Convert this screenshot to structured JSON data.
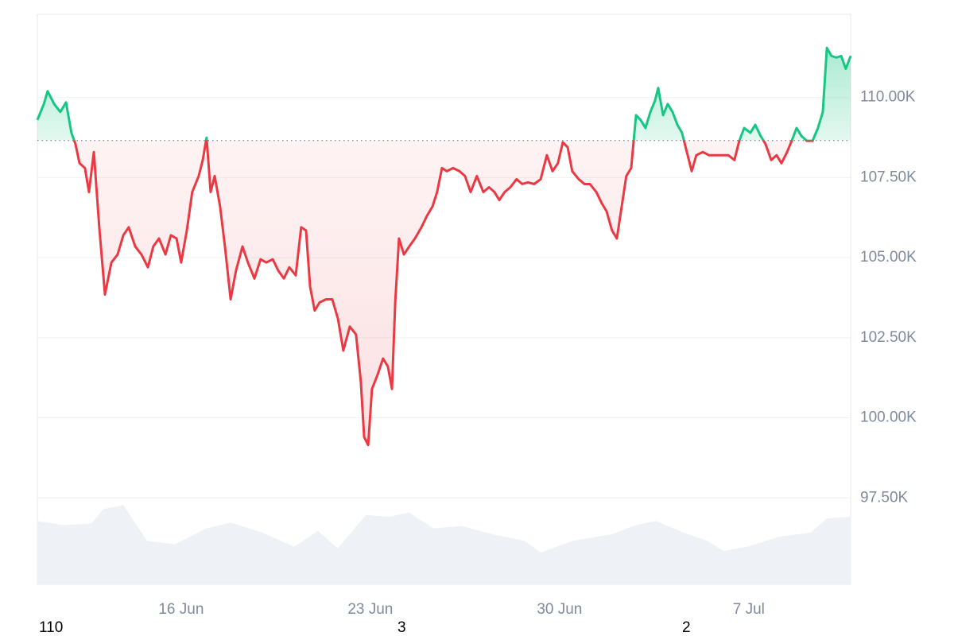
{
  "chart_data": {
    "type": "baseline",
    "x": [
      10.68,
      10.92,
      11.06,
      11.3,
      11.53,
      11.74,
      11.94,
      12.09,
      12.24,
      12.44,
      12.59,
      12.77,
      12.97,
      13.18,
      13.42,
      13.65,
      13.86,
      14.06,
      14.3,
      14.53,
      14.77,
      14.97,
      15.18,
      15.42,
      15.62,
      15.83,
      16.0,
      16.21,
      16.41,
      16.65,
      16.8,
      16.94,
      17.09,
      17.24,
      17.44,
      17.62,
      17.83,
      18.03,
      18.27,
      18.47,
      18.71,
      18.94,
      19.15,
      19.39,
      19.59,
      19.8,
      20.0,
      20.24,
      20.44,
      20.62,
      20.77,
      20.94,
      21.12,
      21.36,
      21.59,
      21.8,
      22.0,
      22.24,
      22.47,
      22.65,
      22.77,
      22.92,
      23.06,
      23.27,
      23.47,
      23.65,
      23.8,
      23.92,
      24.06,
      24.24,
      24.44,
      24.65,
      24.89,
      25.09,
      25.3,
      25.47,
      25.65,
      25.83,
      26.06,
      26.3,
      26.5,
      26.71,
      26.94,
      27.18,
      27.39,
      27.59,
      27.77,
      27.97,
      28.18,
      28.41,
      28.62,
      28.83,
      29.06,
      29.3,
      29.53,
      29.74,
      29.94,
      30.12,
      30.3,
      30.47,
      30.71,
      30.92,
      31.12,
      31.36,
      31.56,
      31.74,
      31.94,
      32.12,
      32.3,
      32.47,
      32.65,
      32.83,
      33.0,
      33.18,
      33.36,
      33.53,
      33.65,
      33.83,
      34.0,
      34.18,
      34.36,
      34.53,
      34.71,
      34.89,
      35.06,
      35.3,
      35.53,
      35.77,
      36.0,
      36.24,
      36.47,
      36.65,
      36.83,
      37.06,
      37.24,
      37.44,
      37.62,
      37.83,
      38.03,
      38.21,
      38.42,
      38.59,
      38.77,
      38.95,
      39.15,
      39.36,
      39.56,
      39.74,
      39.89,
      40.06,
      40.24,
      40.42,
      40.59,
      40.77
    ],
    "values": [
      109300,
      109800,
      110200,
      109800,
      109550,
      109850,
      108900,
      108550,
      107950,
      107800,
      107050,
      108300,
      105950,
      103850,
      104850,
      105100,
      105700,
      105950,
      105350,
      105100,
      104700,
      105350,
      105600,
      105100,
      105700,
      105600,
      104850,
      105850,
      107050,
      107550,
      108050,
      108750,
      107050,
      107550,
      106600,
      105350,
      103700,
      104600,
      105350,
      104850,
      104350,
      104950,
      104850,
      104950,
      104600,
      104350,
      104700,
      104450,
      105950,
      105850,
      104100,
      103350,
      103600,
      103700,
      103700,
      103100,
      102100,
      102850,
      102600,
      101100,
      99400,
      99150,
      100900,
      101350,
      101850,
      101600,
      100900,
      103600,
      105600,
      105100,
      105350,
      105600,
      105950,
      106300,
      106600,
      107050,
      107800,
      107700,
      107800,
      107700,
      107550,
      107050,
      107550,
      107050,
      107200,
      107050,
      106800,
      107050,
      107200,
      107450,
      107300,
      107350,
      107300,
      107450,
      108200,
      107700,
      107950,
      108600,
      108450,
      107700,
      107450,
      107300,
      107300,
      107050,
      106700,
      106450,
      105850,
      105600,
      106600,
      107550,
      107800,
      109450,
      109300,
      109050,
      109550,
      109900,
      110300,
      109450,
      109800,
      109550,
      109150,
      108900,
      108300,
      107700,
      108200,
      108300,
      108200,
      108200,
      108200,
      108200,
      108050,
      108650,
      109050,
      108900,
      109150,
      108800,
      108550,
      108050,
      108200,
      107950,
      108300,
      108650,
      109050,
      108800,
      108650,
      108650,
      109050,
      109550,
      111550,
      111300,
      111250,
      111300,
      110900,
      111300
    ],
    "baseline": 108660,
    "up_color": "#16c784",
    "down_color": "#ea3943",
    "xlim": [
      10.68,
      40.77
    ],
    "xticks": [
      {
        "value": 16,
        "label": "16 Jun"
      },
      {
        "value": 23,
        "label": "23 Jun"
      },
      {
        "value": 30,
        "label": "30 Jun"
      },
      {
        "value": 37,
        "label": "7 Jul"
      }
    ],
    "ylim": [
      94800,
      112600
    ],
    "yticks": [
      {
        "value": 97500,
        "label": "97.50K"
      },
      {
        "value": 100000,
        "label": "100.00K"
      },
      {
        "value": 102500,
        "label": "102.50K"
      },
      {
        "value": 105000,
        "label": "105.00K"
      },
      {
        "value": 107500,
        "label": "107.50K"
      },
      {
        "value": 110000,
        "label": "110.00K"
      }
    ],
    "grid": true,
    "volume": {
      "color": "#eef1f5",
      "ylim": [
        0,
        100
      ],
      "x": [
        10.68,
        11.65,
        12.68,
        13.12,
        13.86,
        14.74,
        15.77,
        16.94,
        17.83,
        19.0,
        20.18,
        21.06,
        21.8,
        22.83,
        23.71,
        24.44,
        25.33,
        26.36,
        27.53,
        28.71,
        29.3,
        30.47,
        31.94,
        32.83,
        33.56,
        34.59,
        35.47,
        36.06,
        36.94,
        38.12,
        39.3,
        39.89,
        40.77
      ],
      "values": [
        76,
        71,
        73,
        90,
        95,
        52,
        48,
        67,
        74,
        62,
        45,
        64,
        43,
        83,
        81,
        86,
        67,
        70,
        60,
        52,
        38,
        52,
        60,
        71,
        76,
        62,
        52,
        40,
        45,
        57,
        62,
        79,
        81
      ]
    },
    "footer_labels": [
      "110",
      "3",
      "2"
    ]
  }
}
